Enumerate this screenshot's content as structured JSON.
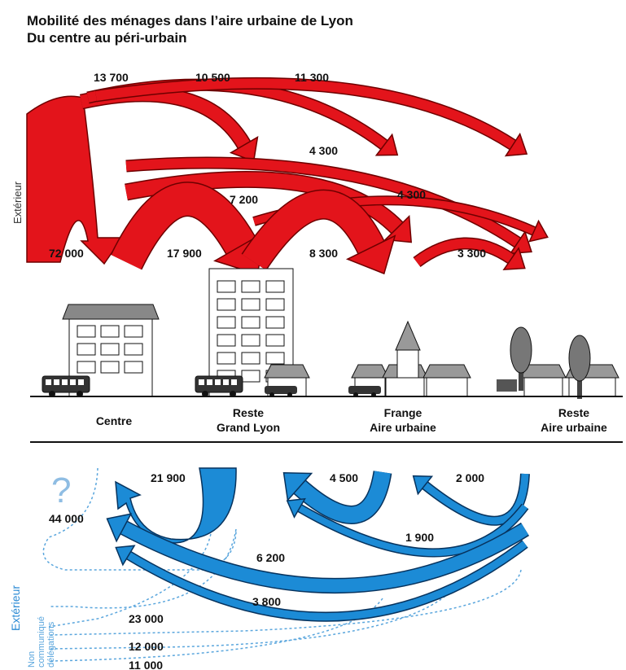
{
  "header": {
    "title": "Mobilité des ménages dans l’aire urbaine de Lyon",
    "subtitle": "Du centre au péri-urbain"
  },
  "top": {
    "side_label": "Extérieur",
    "flows": [
      {
        "label": "13 700"
      },
      {
        "label": "10 500"
      },
      {
        "label": "11 300"
      },
      {
        "label": "4 300"
      },
      {
        "label": "7 200"
      },
      {
        "label": "4 300"
      },
      {
        "label": "72 000"
      },
      {
        "label": "17 900"
      },
      {
        "label": "8 300"
      },
      {
        "label": "3 300"
      }
    ]
  },
  "zones": [
    {
      "lines": [
        "Centre"
      ]
    },
    {
      "lines": [
        "Reste",
        "Grand Lyon"
      ]
    },
    {
      "lines": [
        "Frange",
        "Aire urbaine"
      ]
    },
    {
      "lines": [
        "Reste",
        "Aire urbaine"
      ]
    }
  ],
  "bottom": {
    "question": "?",
    "side_label": "Extérieur",
    "note": [
      "Non",
      "communiqué",
      "délégations"
    ],
    "flows": [
      {
        "label": "21 900"
      },
      {
        "label": "4 500"
      },
      {
        "label": "2 000"
      },
      {
        "label": "44 000"
      },
      {
        "label": "1 900"
      },
      {
        "label": "6 200"
      },
      {
        "label": "3 800"
      },
      {
        "label": "23 000"
      },
      {
        "label": "12 000"
      },
      {
        "label": "11 000"
      }
    ]
  }
}
